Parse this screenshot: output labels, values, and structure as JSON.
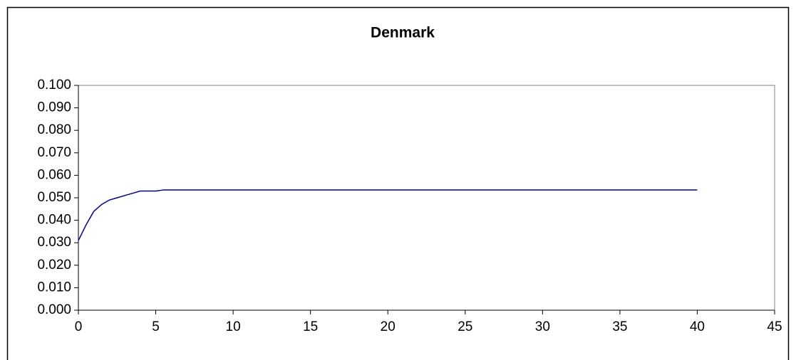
{
  "chart_data": {
    "type": "line",
    "title": "Denmark",
    "x": [
      0,
      0.5,
      1,
      1.5,
      2,
      2.5,
      3,
      3.5,
      4,
      5,
      5.5,
      40
    ],
    "series": [
      {
        "name": "Denmark",
        "color": "#000080",
        "values": [
          0.031,
          0.038,
          0.044,
          0.047,
          0.049,
          0.05,
          0.051,
          0.052,
          0.053,
          0.053,
          0.0535,
          0.0535
        ]
      }
    ],
    "xlim": [
      0,
      45
    ],
    "xticks": [
      0,
      5,
      10,
      15,
      20,
      25,
      30,
      35,
      40,
      45
    ],
    "ylim": [
      0,
      0.1
    ],
    "yticks": [
      {
        "value": 0,
        "label": "0.000"
      },
      {
        "value": 0.01,
        "label": "0.010"
      },
      {
        "value": 0.02,
        "label": "0.020"
      },
      {
        "value": 0.03,
        "label": "0.030"
      },
      {
        "value": 0.04,
        "label": "0.040"
      },
      {
        "value": 0.05,
        "label": "0.050"
      },
      {
        "value": 0.06,
        "label": "0.060"
      },
      {
        "value": 0.07,
        "label": "0.070"
      },
      {
        "value": 0.08,
        "label": "0.080"
      },
      {
        "value": 0.09,
        "label": "0.090"
      },
      {
        "value": 0.1,
        "label": "0.100"
      }
    ],
    "grid": false,
    "legend": false
  }
}
